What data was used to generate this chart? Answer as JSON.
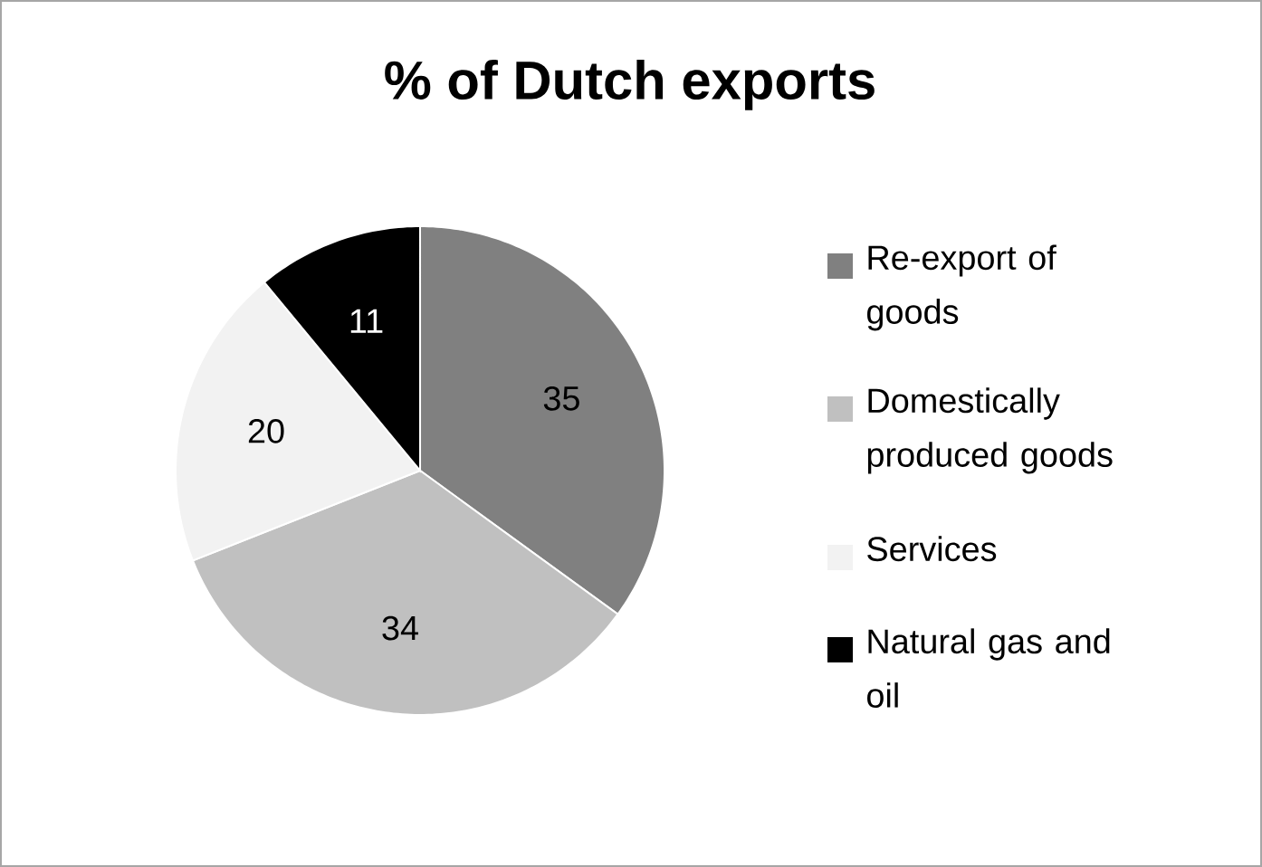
{
  "chart_data": {
    "type": "pie",
    "title": "% of Dutch exports",
    "categories": [
      "Re-export of goods",
      "Domestically produced goods",
      "Services",
      "Natural gas and oil"
    ],
    "values": [
      35,
      34,
      20,
      11
    ],
    "colors": [
      "#808080",
      "#c0c0c0",
      "#f2f2f2",
      "#000000"
    ],
    "data_labels": true,
    "legend": "right"
  }
}
